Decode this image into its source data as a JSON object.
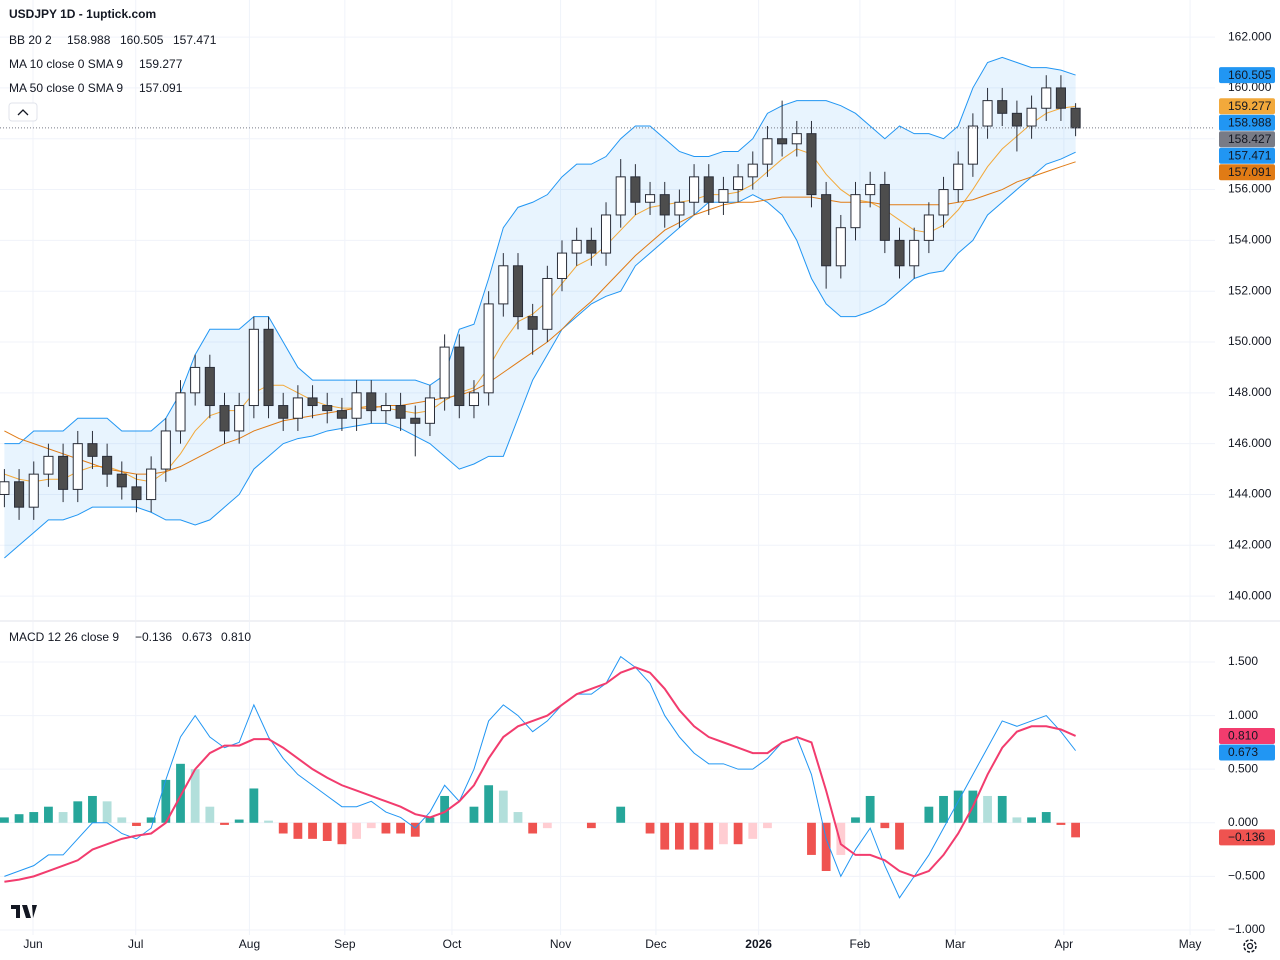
{
  "chart_data": [
    {
      "type": "candlestick",
      "title": "USDJPY 1D - 1uptick.com",
      "open": [
        144,
        144.5,
        143.5,
        144.8,
        145.5,
        144.2,
        146,
        145.5,
        144.8,
        144.3,
        143.8,
        145,
        146.5,
        148,
        149,
        147.5,
        146.5,
        147.5,
        150.5,
        147.5,
        147,
        147.8,
        147.5,
        147.3,
        147,
        148,
        147.3,
        147.5,
        147,
        146.8,
        147.8,
        149.8,
        147.5,
        148,
        151.5,
        153,
        151,
        150.5,
        152.5,
        153.5,
        154,
        153.5,
        155,
        156.5,
        155.5,
        155.8,
        155,
        155.5,
        156.5,
        155.5,
        156,
        156.5,
        157,
        158,
        157.8,
        158.2,
        155.8,
        153,
        154.5,
        155.8,
        156.2,
        154,
        153,
        154,
        155,
        156,
        157,
        158.5,
        159.5,
        159,
        158.5,
        159.2,
        160,
        159.2
      ],
      "high": [
        145,
        145,
        145.3,
        146,
        146,
        146.5,
        146.5,
        146,
        145.3,
        144.8,
        145.5,
        147,
        148.5,
        149.5,
        149.5,
        148,
        148,
        151,
        151,
        148,
        148.3,
        148.3,
        148,
        147.8,
        148.5,
        148.5,
        148,
        148,
        147.5,
        148.3,
        150.3,
        150.3,
        148.5,
        152,
        153.5,
        153.5,
        151.5,
        153,
        154,
        154.5,
        154.5,
        155.5,
        157.2,
        157,
        156.3,
        156.3,
        156,
        157,
        157,
        156.5,
        157,
        157.5,
        158.5,
        159.5,
        158.7,
        158.7,
        156.3,
        155,
        156.3,
        156.7,
        156.7,
        154.5,
        154.5,
        155.5,
        156.5,
        157.5,
        159,
        160,
        160,
        159.5,
        159.7,
        160.5,
        160.5,
        159.4
      ],
      "low": [
        143.5,
        143,
        143,
        144.3,
        143.7,
        143.7,
        145,
        144.3,
        143.8,
        143.3,
        143.3,
        144.5,
        146,
        147.5,
        147,
        146,
        146,
        147,
        147,
        146.5,
        146.5,
        147,
        146.8,
        146.5,
        146.5,
        146.8,
        146.8,
        146.5,
        145.5,
        146.3,
        147.3,
        147,
        147,
        147.5,
        151,
        150.5,
        149.5,
        150,
        152,
        153,
        153,
        153,
        154.5,
        155,
        155,
        154.5,
        154.5,
        155,
        155,
        155,
        155.5,
        156,
        156.5,
        157.3,
        157.3,
        155.3,
        152.1,
        152.5,
        154,
        155.3,
        153.5,
        152.5,
        152.5,
        153.5,
        154.5,
        155.5,
        156.5,
        158,
        158.5,
        157.5,
        158,
        158.7,
        158.7,
        158.1
      ],
      "close": [
        144.5,
        143.5,
        144.8,
        145.5,
        144.2,
        146,
        145.5,
        144.8,
        144.3,
        143.8,
        145,
        146.5,
        148,
        149,
        147.5,
        146.5,
        147.5,
        150.5,
        147.5,
        147,
        147.8,
        147.5,
        147.3,
        147,
        148,
        147.3,
        147.5,
        147,
        146.8,
        147.8,
        149.8,
        147.5,
        148,
        151.5,
        153,
        151,
        150.5,
        152.5,
        153.5,
        154,
        153.5,
        155,
        156.5,
        155.5,
        155.8,
        155,
        155.5,
        156.5,
        155.5,
        156,
        156.5,
        157,
        158,
        157.8,
        158.2,
        155.8,
        153,
        154.5,
        155.8,
        156.2,
        154,
        153,
        154,
        155,
        156,
        157,
        158.5,
        159.5,
        159,
        158.5,
        159.2,
        160,
        159.2,
        158.427
      ],
      "up_color": "#ffffff",
      "down_color": "#4d4d4d",
      "wick_color": "#2a2e39",
      "last_price_color": "#787b86",
      "xlim": [
        -0.3,
        82.5
      ],
      "xticks": [
        {
          "value": 1.95,
          "label": "Jun"
        },
        {
          "value": 8.95,
          "label": "Jul"
        },
        {
          "value": 16.7,
          "label": "Aug"
        },
        {
          "value": 23.2,
          "label": "Sep"
        },
        {
          "value": 30.5,
          "label": "Oct"
        },
        {
          "value": 37.9,
          "label": "Nov"
        },
        {
          "value": 44.4,
          "label": "Dec"
        },
        {
          "value": 51.4,
          "label": "2026"
        },
        {
          "value": 58.3,
          "label": "Feb"
        },
        {
          "value": 64.8,
          "label": "Mar"
        },
        {
          "value": 72.2,
          "label": "Apr"
        },
        {
          "value": 80.8,
          "label": "May"
        }
      ],
      "ylim": [
        139.06,
        163.46
      ],
      "yticks": [
        {
          "value": 140,
          "label": "140.000"
        },
        {
          "value": 142,
          "label": "142.000"
        },
        {
          "value": 144,
          "label": "144.000"
        },
        {
          "value": 146,
          "label": "146.000"
        },
        {
          "value": 148,
          "label": "148.000"
        },
        {
          "value": 150,
          "label": "150.000"
        },
        {
          "value": 152,
          "label": "152.000"
        },
        {
          "value": 154,
          "label": "154.000"
        },
        {
          "value": 156,
          "label": "156.000"
        },
        {
          "value": 158,
          "label": "158.000"
        },
        {
          "value": 160,
          "label": "160.000"
        },
        {
          "value": 162,
          "label": "162.000"
        }
      ],
      "grid": true,
      "bollinger": {
        "name": "BB 20 2",
        "basis": 158.988,
        "color": "#2196f3",
        "upper": [
          146,
          146,
          146.5,
          146.5,
          146.5,
          147,
          147,
          147,
          146.5,
          146.5,
          146.5,
          147,
          148,
          149.5,
          150.5,
          150.5,
          150.5,
          151,
          151,
          150,
          149,
          148.5,
          148.5,
          148.5,
          148.5,
          148.5,
          148.5,
          148.5,
          148.5,
          148.3,
          148.7,
          150.5,
          150.7,
          152.5,
          154.5,
          155.3,
          155.5,
          155.8,
          156.5,
          157,
          157,
          157.3,
          158,
          158.5,
          158.5,
          158,
          157.5,
          157.3,
          157.3,
          157.5,
          157.5,
          158,
          159,
          159.3,
          159.5,
          159.5,
          159.5,
          159.3,
          159,
          158.5,
          158,
          158.5,
          158.2,
          158.2,
          158,
          158.5,
          160,
          161,
          161.2,
          161,
          160.8,
          160.8,
          160.7,
          160.505
        ],
        "lower": [
          141.5,
          142,
          142.5,
          143,
          143,
          143.2,
          143.5,
          143.5,
          143.5,
          143.5,
          143.3,
          143,
          143,
          142.8,
          143,
          143.5,
          144,
          145,
          145.5,
          146,
          146.2,
          146.3,
          146.5,
          146.6,
          146.7,
          146.8,
          146.8,
          146.6,
          146.3,
          146,
          145.5,
          145,
          145.2,
          145.5,
          145.5,
          147,
          148.5,
          149.5,
          150.5,
          151,
          151.5,
          151.8,
          152,
          153,
          153.5,
          154,
          154.5,
          155,
          155.5,
          155.5,
          155.5,
          155.8,
          155.5,
          155,
          154,
          152.5,
          151.5,
          151,
          151,
          151.2,
          151.5,
          152,
          152.5,
          152.7,
          152.8,
          153.5,
          154,
          155,
          155.5,
          156,
          156.5,
          157,
          157.2,
          157.471
        ]
      },
      "series": [
        {
          "name": "MA 10 close 0 SMA 9",
          "color": "#f2a93b",
          "values": [
            144.8,
            144.6,
            144.5,
            144.6,
            144.6,
            144.9,
            145.1,
            145.1,
            144.9,
            144.6,
            144.5,
            144.9,
            145.6,
            146.5,
            147.1,
            147.3,
            147.3,
            148,
            148.3,
            148.3,
            148,
            147.7,
            147.5,
            147.4,
            147.4,
            147.5,
            147.4,
            147.3,
            147.2,
            147.3,
            147.7,
            148,
            148.2,
            149,
            150,
            150.8,
            151.1,
            151.6,
            152.3,
            153,
            153.3,
            153.8,
            154.4,
            155,
            155.3,
            155.4,
            155.5,
            155.6,
            155.8,
            155.8,
            155.9,
            156.2,
            156.7,
            157.2,
            157.6,
            157.4,
            156.6,
            156,
            155.6,
            155.5,
            155.2,
            154.8,
            154.4,
            154.3,
            154.6,
            155.2,
            156,
            156.9,
            157.6,
            158.1,
            158.6,
            159,
            159.2,
            159.277
          ]
        },
        {
          "name": "MA 50 close 0 SMA 9",
          "color": "#e07b15",
          "values": [
            146.5,
            146.2,
            146,
            145.8,
            145.6,
            145.4,
            145.2,
            145,
            144.9,
            144.8,
            144.8,
            144.9,
            145.1,
            145.4,
            145.7,
            146,
            146.2,
            146.5,
            146.7,
            146.9,
            147,
            147.1,
            147.2,
            147.3,
            147.4,
            147.4,
            147.5,
            147.5,
            147.6,
            147.7,
            147.8,
            147.9,
            148.1,
            148.4,
            148.8,
            149.2,
            149.6,
            150,
            150.5,
            151.1,
            151.6,
            152.2,
            152.8,
            153.4,
            153.9,
            154.4,
            154.7,
            155,
            155.2,
            155.4,
            155.5,
            155.5,
            155.6,
            155.7,
            155.7,
            155.7,
            155.6,
            155.5,
            155.5,
            155.5,
            155.4,
            155.4,
            155.4,
            155.4,
            155.4,
            155.5,
            155.6,
            155.8,
            156,
            156.3,
            156.5,
            156.7,
            156.9,
            157.091
          ]
        }
      ]
    },
    {
      "type": "macd",
      "title": "MACD 12 26 close 9",
      "histogram": {
        "last_label": "−0.136",
        "up_strong": "#26a69a",
        "up_weak": "#b2dfdb",
        "down_strong": "#ef5350",
        "down_weak": "#ffcdd2",
        "values": [
          0.05,
          0.08,
          0.1,
          0.15,
          0.1,
          0.2,
          0.25,
          0.2,
          0.05,
          -0.03,
          0.05,
          0.4,
          0.55,
          0.5,
          0.15,
          -0.02,
          0.03,
          0.32,
          0.02,
          -0.1,
          -0.15,
          -0.15,
          -0.17,
          -0.2,
          -0.15,
          -0.05,
          -0.1,
          -0.1,
          -0.13,
          0.05,
          0.25,
          0,
          0.15,
          0.35,
          0.3,
          0.1,
          -0.1,
          -0.05,
          0,
          0,
          -0.05,
          0,
          0.15,
          0,
          -0.1,
          -0.25,
          -0.25,
          -0.25,
          -0.25,
          -0.2,
          -0.2,
          -0.15,
          -0.05,
          0,
          0,
          -0.3,
          -0.45,
          -0.3,
          0.05,
          0.25,
          -0.05,
          -0.25,
          0,
          0.15,
          0.25,
          0.3,
          0.3,
          0.25,
          0.25,
          0.05,
          0.05,
          0.1,
          -0.02,
          -0.136
        ]
      },
      "macd": {
        "color": "#2196f3",
        "values": [
          -0.5,
          -0.45,
          -0.4,
          -0.3,
          -0.3,
          -0.15,
          0,
          0,
          -0.1,
          -0.15,
          -0.05,
          0.4,
          0.8,
          1.0,
          0.8,
          0.7,
          0.75,
          1.1,
          0.8,
          0.6,
          0.45,
          0.35,
          0.25,
          0.15,
          0.15,
          0.2,
          0.1,
          0.05,
          -0.05,
          0.1,
          0.35,
          0.2,
          0.5,
          0.95,
          1.1,
          1.0,
          0.85,
          0.95,
          1.1,
          1.2,
          1.2,
          1.3,
          1.55,
          1.45,
          1.3,
          1.0,
          0.8,
          0.65,
          0.55,
          0.55,
          0.5,
          0.5,
          0.6,
          0.75,
          0.8,
          0.45,
          -0.15,
          -0.5,
          -0.25,
          -0.05,
          -0.4,
          -0.7,
          -0.5,
          -0.3,
          -0.05,
          0.2,
          0.45,
          0.7,
          0.95,
          0.9,
          0.95,
          1.0,
          0.85,
          0.673
        ]
      },
      "signal": {
        "color": "#f23c6e",
        "last_label": "0.810",
        "values": [
          -0.55,
          -0.53,
          -0.5,
          -0.45,
          -0.4,
          -0.35,
          -0.25,
          -0.2,
          -0.15,
          -0.12,
          -0.1,
          0,
          0.25,
          0.5,
          0.65,
          0.72,
          0.72,
          0.78,
          0.78,
          0.7,
          0.6,
          0.5,
          0.42,
          0.35,
          0.3,
          0.25,
          0.2,
          0.15,
          0.08,
          0.05,
          0.1,
          0.2,
          0.35,
          0.6,
          0.8,
          0.9,
          0.95,
          1.0,
          1.1,
          1.2,
          1.25,
          1.3,
          1.4,
          1.45,
          1.4,
          1.25,
          1.05,
          0.9,
          0.8,
          0.75,
          0.7,
          0.65,
          0.65,
          0.75,
          0.8,
          0.75,
          0.3,
          -0.2,
          -0.3,
          -0.3,
          -0.35,
          -0.45,
          -0.5,
          -0.45,
          -0.3,
          -0.1,
          0.15,
          0.45,
          0.7,
          0.85,
          0.9,
          0.9,
          0.87,
          0.81
        ]
      },
      "ylim": [
        -1.047,
        1.873
      ],
      "yticks": [
        {
          "value": -1,
          "label": "−1.000"
        },
        {
          "value": -0.5,
          "label": "−0.500"
        },
        {
          "value": 0,
          "label": "0.000"
        },
        {
          "value": 0.5,
          "label": "0.500"
        },
        {
          "value": 1,
          "label": "1.000"
        },
        {
          "value": 1.5,
          "label": "1.500"
        }
      ]
    }
  ]
}
